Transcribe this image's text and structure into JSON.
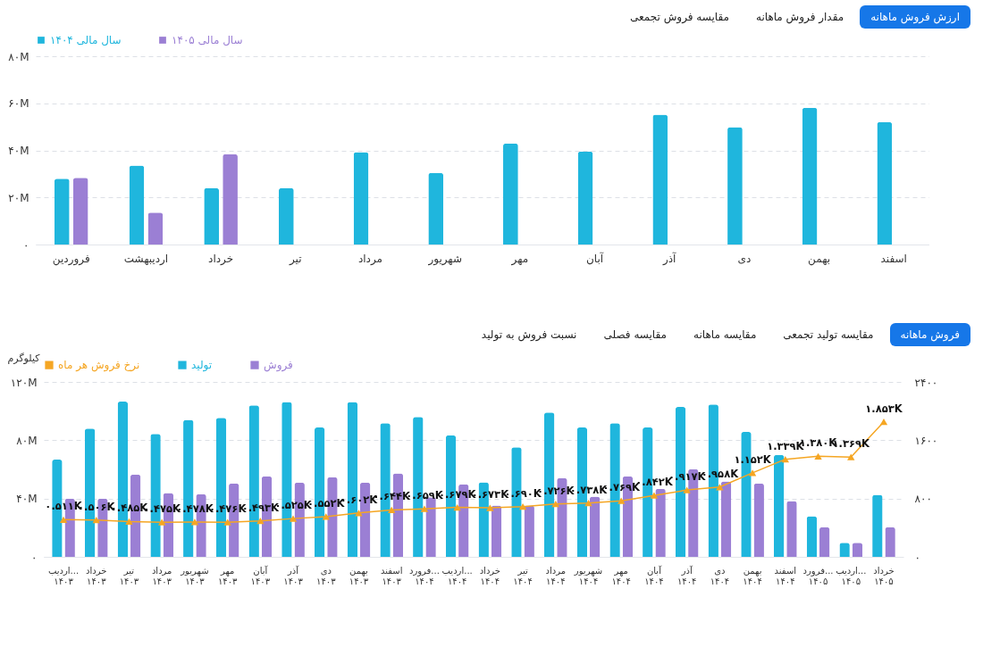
{
  "chart_data": [
    {
      "type": "bar",
      "annotations": [
        "ارزش فروش ماهانه",
        "مقدار فروش ماهانه",
        "مقایسه فروش تجمعی"
      ],
      "categories": [
        "فروردین",
        "اردیبهشت",
        "خرداد",
        "تیر",
        "مرداد",
        "شهریور",
        "مهر",
        "آبان",
        "آذر",
        "دی",
        "بهمن",
        "اسفند"
      ],
      "series": [
        {
          "name": "سال مالی ۱۴۰۴",
          "color": "#1fb6dd",
          "values": [
            28000000,
            33600000,
            24000000,
            24000000,
            39200000,
            30400000,
            42900000,
            39500000,
            55200000,
            49900000,
            58100000,
            52000000
          ]
        },
        {
          "name": "سال مالی ۱۴۰۵",
          "color": "#9b7fd4",
          "values": [
            28300000,
            13600000,
            38400000,
            null,
            null,
            null,
            null,
            null,
            null,
            null,
            null,
            null
          ]
        }
      ],
      "ylim": [
        0,
        80000000
      ],
      "yticks": [
        {
          "value": 0,
          "label": "۰"
        },
        {
          "value": 20000000,
          "label": "۲۰M"
        },
        {
          "value": 40000000,
          "label": "۴۰M"
        },
        {
          "value": 60000000,
          "label": "۶۰M"
        },
        {
          "value": 80000000,
          "label": "۸۰M"
        }
      ],
      "grid": "y",
      "legend": "top left"
    },
    {
      "type": "bar",
      "annotations": [
        "فروش ماهانه",
        "مقایسه تولید تجمعی",
        "مقایسه ماهانه",
        "مقایسه فصلی",
        "نسبت فروش به تولید"
      ],
      "ylabel": "کیلوگرم",
      "categories": [
        "اردیب... ۱۴۰۳",
        "خرداد ۱۴۰۳",
        "تیر ۱۴۰۳",
        "مرداد ۱۴۰۳",
        "شهریور ۱۴۰۳",
        "مهر ۱۴۰۳",
        "آبان ۱۴۰۳",
        "آذر ۱۴۰۳",
        "دی ۱۴۰۳",
        "بهمن ۱۴۰۳",
        "اسفند ۱۴۰۳",
        "فرورد... ۱۴۰۴",
        "اردیب... ۱۴۰۴",
        "خرداد ۱۴۰۴",
        "تیر ۱۴۰۴",
        "مرداد ۱۴۰۴",
        "شهریور ۱۴۰۴",
        "مهر ۱۴۰۴",
        "آبان ۱۴۰۴",
        "آذر ۱۴۰۴",
        "دی ۱۴۰۴",
        "بهمن ۱۴۰۴",
        "اسفند ۱۴۰۴",
        "فرورد... ۱۴۰۵",
        "اردیب... ۱۴۰۵",
        "خرداد ۱۴۰۵"
      ],
      "series": [
        {
          "name": "نرخ فروش هر ماه",
          "type": "line",
          "axis": "y2",
          "color": "#f5a623",
          "marker": "triangle",
          "values": [
            511,
            506,
            485,
            475,
            478,
            476,
            493,
            525,
            552,
            602,
            644,
            659,
            679,
            673,
            690,
            726,
            738,
            769,
            842,
            917,
            958,
            1152,
            1339,
            1380,
            1369,
            1853
          ],
          "value_labels": [
            "۰.۵۱۱K",
            "۰.۵۰۶K",
            "۰.۴۸۵K",
            "۰.۴۷۵K",
            "۰.۴۷۸K",
            "۰.۴۷۶K",
            "۰.۴۹۳K",
            "۰.۵۲۵K",
            "۰.۵۵۲K",
            "۰.۶۰۲K",
            "۰.۶۴۴K",
            "۰.۶۵۹K",
            "۰.۶۷۹K",
            "۰.۶۷۳K",
            "۰.۶۹۰K",
            "۰.۷۲۶K",
            "۰.۷۳۸K",
            "۰.۷۶۹K",
            "۰.۸۴۲K",
            "۰.۹۱۷K",
            "۰.۹۵۸K",
            "۱.۱۵۲K",
            "۱.۳۳۹K",
            "۱.۳۸۰K",
            "۱.۳۶۹K",
            "۱.۸۵۳K"
          ]
        },
        {
          "name": "تولید",
          "color": "#1fb6dd",
          "values": [
            66700000,
            88000000,
            106500000,
            84300000,
            94000000,
            95400000,
            104000000,
            106300000,
            88700000,
            106300000,
            91700000,
            96000000,
            83300000,
            51100000,
            75200000,
            99100000,
            88700000,
            91700000,
            88700000,
            102800000,
            104600000,
            85700000,
            70000000,
            27800000,
            9600000,
            42600000
          ]
        },
        {
          "name": "فروش",
          "color": "#9b7fd4",
          "values": [
            40000000,
            40000000,
            56500000,
            43700000,
            43000000,
            50400000,
            55200000,
            51000000,
            54600000,
            51000000,
            57200000,
            40900000,
            49800000,
            35200000,
            35200000,
            54100000,
            41300000,
            55200000,
            46700000,
            60200000,
            51700000,
            50400000,
            38300000,
            20400000,
            9600000,
            20400000
          ]
        }
      ],
      "ylim": [
        0,
        120000000
      ],
      "yticks": [
        {
          "value": 0,
          "label": "۰"
        },
        {
          "value": 40000000,
          "label": "۴۰M"
        },
        {
          "value": 80000000,
          "label": "۸۰M"
        },
        {
          "value": 120000000,
          "label": "۱۲۰M"
        }
      ],
      "y2lim": [
        0,
        2400
      ],
      "y2ticks": [
        {
          "value": 0,
          "label": "۰"
        },
        {
          "value": 800,
          "label": "۸۰۰"
        },
        {
          "value": 1600,
          "label": "۱۶۰۰"
        },
        {
          "value": 2400,
          "label": "۲۴۰۰"
        }
      ],
      "grid": "y",
      "legend": "top left"
    }
  ]
}
